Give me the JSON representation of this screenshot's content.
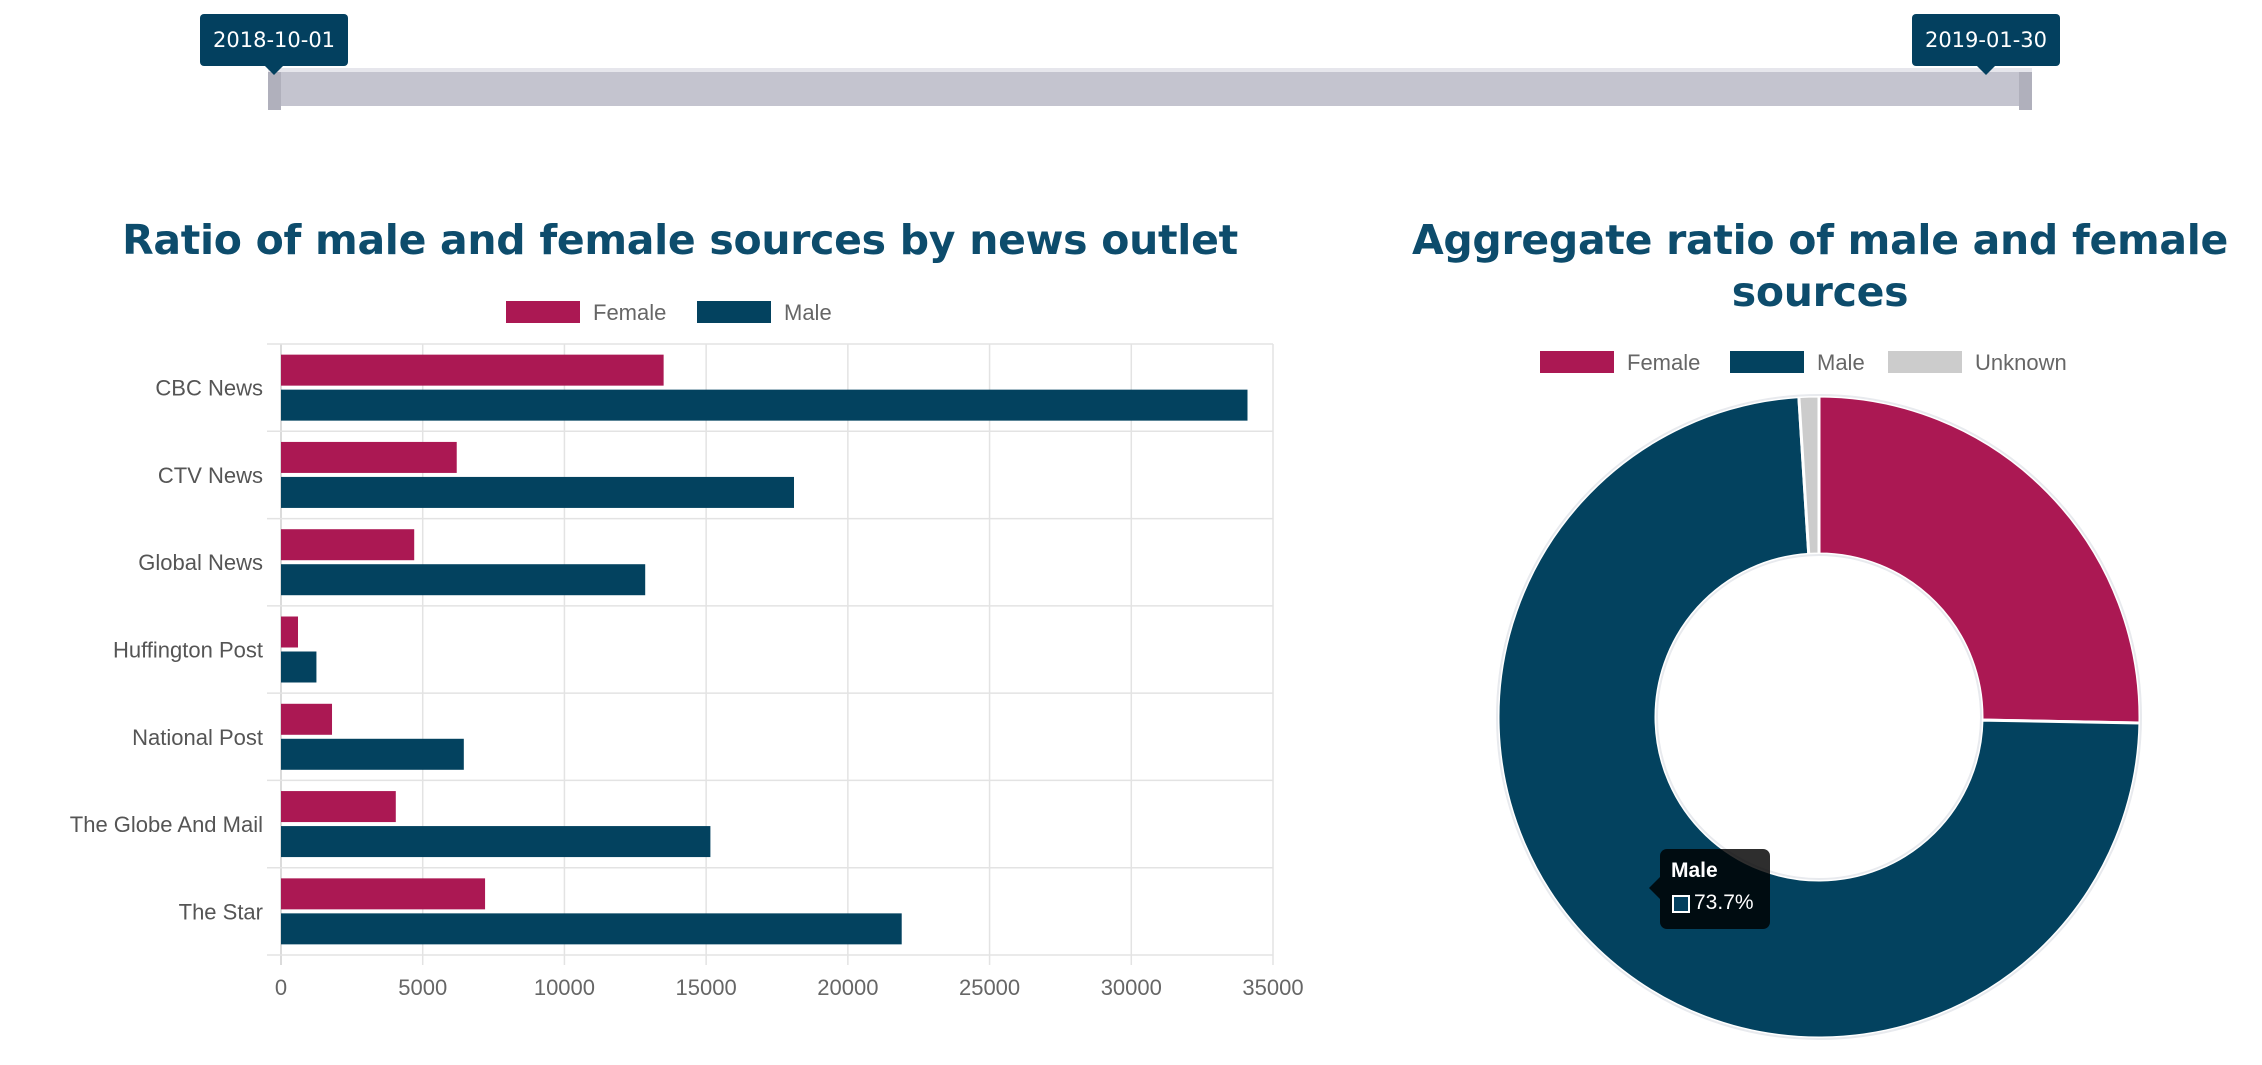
{
  "slider": {
    "start_label": "2018-10-01",
    "end_label": "2019-01-30"
  },
  "colors": {
    "female": "#ab1853",
    "male": "#03425f",
    "unknown": "#cccccc",
    "title": "#0d4c6c",
    "slider_handle": "#03405f"
  },
  "chart_data": [
    {
      "type": "bar",
      "orientation": "horizontal",
      "title": "Ratio of male and female sources by news outlet",
      "categories": [
        "CBC News",
        "CTV News",
        "Global News",
        "Huffington Post",
        "National Post",
        "The Globe And Mail",
        "The Star"
      ],
      "series": [
        {
          "name": "Female",
          "values": [
            13500,
            6200,
            4700,
            600,
            1800,
            4050,
            7200
          ]
        },
        {
          "name": "Male",
          "values": [
            34100,
            18100,
            12850,
            1250,
            6450,
            15150,
            21900
          ]
        }
      ],
      "xlim": [
        0,
        35000
      ],
      "xticks": [
        "0",
        "5000",
        "10000",
        "15000",
        "20000",
        "25000",
        "30000",
        "35000"
      ],
      "grid": true,
      "legend": "top"
    },
    {
      "type": "pie",
      "variant": "doughnut",
      "title": "Aggregate ratio of male and female sources",
      "labels": [
        "Female",
        "Male",
        "Unknown"
      ],
      "values": [
        25.3,
        73.7,
        1.0
      ],
      "legend": "top",
      "tooltip": {
        "label": "Male",
        "value": "73.7%"
      }
    }
  ]
}
